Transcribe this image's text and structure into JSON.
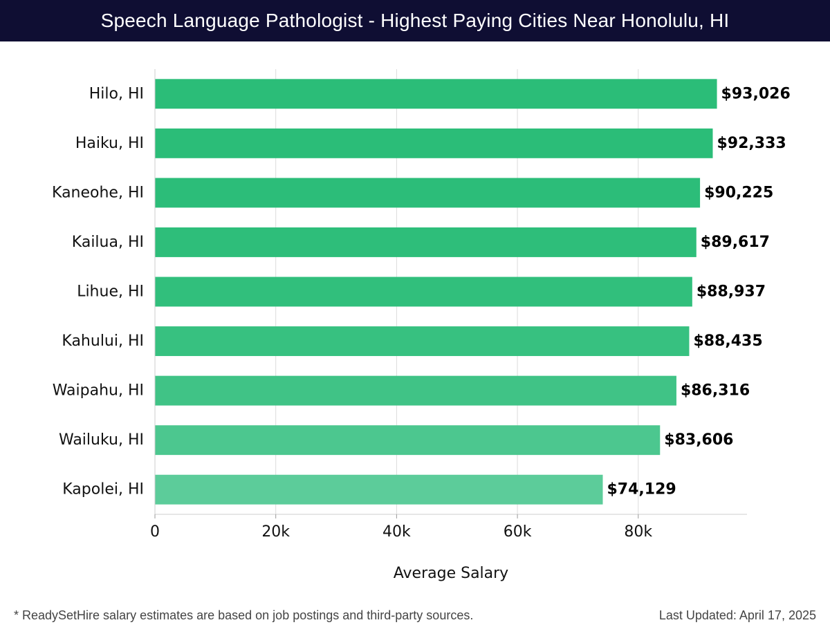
{
  "header": {
    "title": "Speech Language Pathologist - Highest Paying Cities Near Honolulu, HI"
  },
  "chart_data": {
    "type": "bar",
    "orientation": "horizontal",
    "categories": [
      "Hilo, HI",
      "Haiku, HI",
      "Kaneohe, HI",
      "Kailua, HI",
      "Lihue, HI",
      "Kahului, HI",
      "Waipahu, HI",
      "Wailuku, HI",
      "Kapolei, HI"
    ],
    "values": [
      93026,
      92333,
      90225,
      89617,
      88937,
      88435,
      86316,
      83606,
      74129
    ],
    "value_labels": [
      "$93,026",
      "$92,333",
      "$90,225",
      "$89,617",
      "$88,937",
      "$88,435",
      "$86,316",
      "$83,606",
      "$74,129"
    ],
    "xlabel": "Average Salary",
    "ylabel": "",
    "xlim": [
      0,
      98000
    ],
    "x_ticks": [
      0,
      20000,
      40000,
      60000,
      80000
    ],
    "x_tick_labels": [
      "0",
      "20k",
      "40k",
      "60k",
      "80k"
    ],
    "grid": "vertical",
    "legend": "none",
    "colors": {
      "bar_top": "#2bbd78",
      "bar_bottom": "#5ccc9a"
    }
  },
  "footer": {
    "note": "* ReadySetHire salary estimates are based on job postings and third-party sources.",
    "updated": "Last Updated: April 17, 2025"
  }
}
